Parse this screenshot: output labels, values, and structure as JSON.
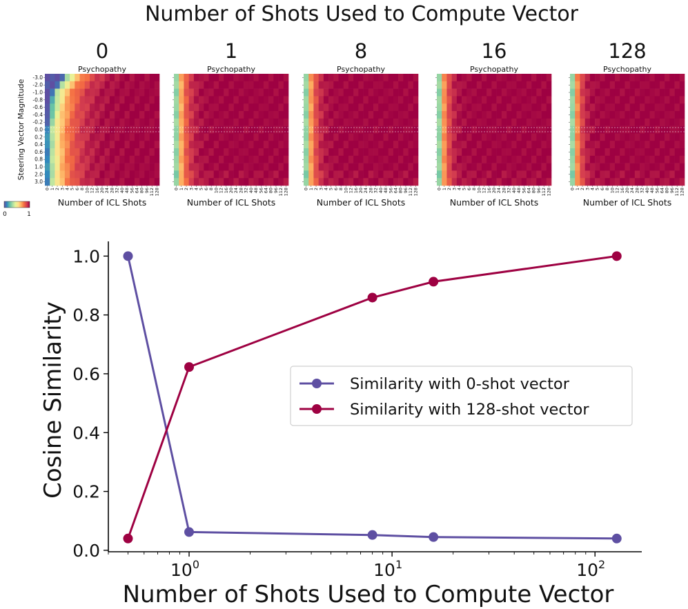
{
  "figure_title": "Number of Shots Used to Compute Vector",
  "colorbar": {
    "min_label": "0",
    "max_label": "1",
    "stops": [
      "#5e4fa2",
      "#3288bd",
      "#66c2a5",
      "#abdda4",
      "#e6f598",
      "#fee08b",
      "#fdae61",
      "#f46d43",
      "#d53e4f",
      "#9e0142"
    ]
  },
  "chart_data": [
    {
      "type": "heatmap",
      "panel_titles": [
        "0",
        "1",
        "8",
        "16",
        "128"
      ],
      "subtitle": "Psychopathy",
      "xlabel": "Number of ICL Shots",
      "ylabel": "Steering Vector Magnitude",
      "x_ticks": [
        "0",
        "1",
        "2",
        "3",
        "4",
        "5",
        "6",
        "8",
        "10",
        "12",
        "16",
        "20",
        "24",
        "28",
        "32",
        "40",
        "48",
        "56",
        "64",
        "80",
        "96",
        "112",
        "128"
      ],
      "y_ticks": [
        "-3.0",
        "-2.0",
        "-1.0",
        "-0.8",
        "-0.6",
        "-0.4",
        "-0.2",
        "0.0",
        "0.2",
        "0.4",
        "0.6",
        "0.8",
        "1.0",
        "2.0",
        "3.0"
      ],
      "value_range": [
        0,
        1
      ],
      "reference_row": "0.0"
    },
    {
      "type": "line",
      "x": [
        0.5,
        1,
        8,
        16,
        128
      ],
      "series": [
        {
          "name": "Similarity with 0-shot vector",
          "color": "#5e4fa2",
          "values": [
            1.0,
            0.062,
            0.052,
            0.045,
            0.04
          ]
        },
        {
          "name": "Similarity with 128-shot vector",
          "color": "#9e0142",
          "values": [
            0.04,
            0.623,
            0.859,
            0.913,
            1.0
          ]
        }
      ],
      "title": "",
      "xlabel": "Number of Shots Used to Compute Vector",
      "ylabel": "Cosine Similarity",
      "xscale": "log",
      "xlim": [
        0.4,
        170
      ],
      "ylim": [
        -0.005,
        1.05
      ],
      "y_ticks": [
        "0.0",
        "0.2",
        "0.4",
        "0.6",
        "0.8",
        "1.0"
      ],
      "x_ticks": [
        {
          "value": 1,
          "base": "10",
          "exp": "0"
        },
        {
          "value": 10,
          "base": "10",
          "exp": "1"
        },
        {
          "value": 100,
          "base": "10",
          "exp": "2"
        }
      ],
      "legend_position": "center-right"
    }
  ]
}
